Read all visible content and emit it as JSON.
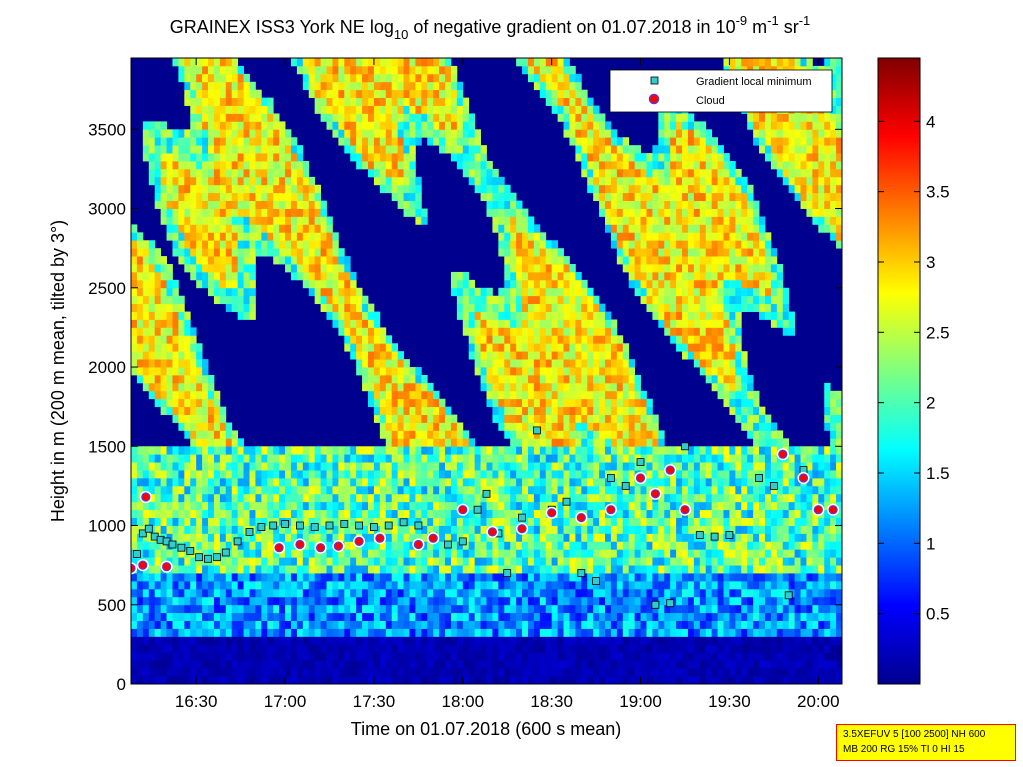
{
  "chart_data": {
    "type": "heatmap",
    "title": {
      "prefix": "GRAINEX ISS3 York NE log",
      "sub": "10",
      "middle": " of negative gradient on 01.07.2018 in 10",
      "sup1": "-9",
      "unit1": " m",
      "sup2": "-1",
      "unit2": " sr",
      "sup3": "-1"
    },
    "xlabel": "Time on 01.07.2018 (600 s mean)",
    "ylabel": "Height in m (200 m mean, tilted by 3°)",
    "x_range": [
      "16:08",
      "20:08"
    ],
    "x_ticks": [
      "16:30",
      "17:00",
      "17:30",
      "18:00",
      "18:30",
      "19:00",
      "19:30",
      "20:00"
    ],
    "y_range": [
      0,
      3950
    ],
    "y_ticks": [
      0,
      500,
      1000,
      1500,
      2000,
      2500,
      3000,
      3500
    ],
    "colorbar": {
      "range": [
        0,
        4.45
      ],
      "ticks": [
        "0.5",
        "1",
        "1.5",
        "2",
        "2.5",
        "3",
        "3.5",
        "4"
      ],
      "tick_values": [
        0.5,
        1,
        1.5,
        2,
        2.5,
        3,
        3.5,
        4
      ],
      "colormap": "jet"
    },
    "legend": {
      "placement": "top-right",
      "entries": [
        {
          "label": "Gradient local minimum",
          "marker": "square",
          "color": "#33cccc"
        },
        {
          "label": "Cloud",
          "marker": "circle",
          "color": "#ff0000"
        }
      ]
    },
    "series": [
      {
        "label_ref": "Gradient local minimum",
        "points": [
          [
            "16:10",
            820
          ],
          [
            "16:12",
            950
          ],
          [
            "16:14",
            980
          ],
          [
            "16:16",
            930
          ],
          [
            "16:18",
            910
          ],
          [
            "16:20",
            900
          ],
          [
            "16:22",
            880
          ],
          [
            "16:25",
            860
          ],
          [
            "16:28",
            840
          ],
          [
            "16:31",
            800
          ],
          [
            "16:34",
            790
          ],
          [
            "16:37",
            800
          ],
          [
            "16:40",
            830
          ],
          [
            "16:44",
            900
          ],
          [
            "16:48",
            960
          ],
          [
            "16:52",
            990
          ],
          [
            "16:56",
            1000
          ],
          [
            "17:00",
            1010
          ],
          [
            "17:05",
            1000
          ],
          [
            "17:10",
            990
          ],
          [
            "17:15",
            1000
          ],
          [
            "17:20",
            1010
          ],
          [
            "17:25",
            1000
          ],
          [
            "17:30",
            990
          ],
          [
            "17:35",
            1000
          ],
          [
            "17:40",
            1020
          ],
          [
            "17:45",
            1000
          ],
          [
            "17:50",
            930
          ],
          [
            "17:55",
            880
          ],
          [
            "18:00",
            900
          ],
          [
            "18:05",
            1100
          ],
          [
            "18:08",
            1200
          ],
          [
            "18:12",
            950
          ],
          [
            "18:15",
            700
          ],
          [
            "18:20",
            1050
          ],
          [
            "18:25",
            1600
          ],
          [
            "18:30",
            1100
          ],
          [
            "18:35",
            1150
          ],
          [
            "18:40",
            700
          ],
          [
            "18:45",
            650
          ],
          [
            "18:50",
            1300
          ],
          [
            "18:55",
            1250
          ],
          [
            "19:00",
            1400
          ],
          [
            "19:05",
            500
          ],
          [
            "19:10",
            510
          ],
          [
            "19:15",
            1500
          ],
          [
            "19:20",
            940
          ],
          [
            "19:25",
            930
          ],
          [
            "19:30",
            940
          ],
          [
            "19:40",
            1300
          ],
          [
            "19:45",
            1250
          ],
          [
            "19:50",
            560
          ],
          [
            "19:55",
            1350
          ],
          [
            "20:00",
            1100
          ]
        ]
      },
      {
        "label_ref": "Cloud",
        "points": [
          [
            "16:08",
            730
          ],
          [
            "16:12",
            750
          ],
          [
            "16:13",
            1180
          ],
          [
            "16:20",
            740
          ],
          [
            "16:58",
            860
          ],
          [
            "17:05",
            880
          ],
          [
            "17:12",
            860
          ],
          [
            "17:18",
            870
          ],
          [
            "17:25",
            900
          ],
          [
            "17:32",
            920
          ],
          [
            "17:45",
            880
          ],
          [
            "17:50",
            920
          ],
          [
            "18:00",
            1100
          ],
          [
            "18:10",
            960
          ],
          [
            "18:20",
            980
          ],
          [
            "18:30",
            1080
          ],
          [
            "18:40",
            1050
          ],
          [
            "18:50",
            1100
          ],
          [
            "19:00",
            1300
          ],
          [
            "19:05",
            1200
          ],
          [
            "19:10",
            1350
          ],
          [
            "19:15",
            1100
          ],
          [
            "19:48",
            1450
          ],
          [
            "19:55",
            1300
          ],
          [
            "20:00",
            1100
          ],
          [
            "20:05",
            1100
          ]
        ]
      }
    ]
  },
  "info_box": {
    "line1": "3.5XEFUV 5 [100 2500] NH 600",
    "line2": "MB 200 RG 15% TI 0 HI 15",
    "bg_color": "#ffff00",
    "border_color": "#ff0000"
  }
}
